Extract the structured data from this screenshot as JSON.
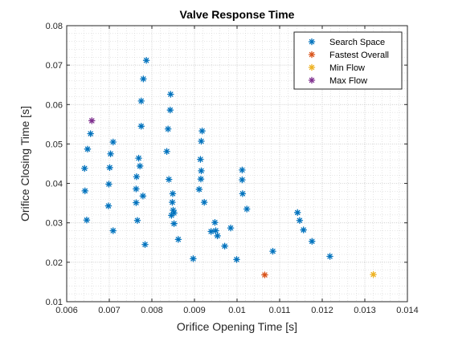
{
  "chart_data": {
    "type": "scatter",
    "title": "Valve Response Time",
    "xlabel": "Orifice Opening Time [s]",
    "ylabel": "Orifice Closing Time [s]",
    "xlim": [
      0.006,
      0.014
    ],
    "ylim": [
      0.01,
      0.08
    ],
    "xticks": [
      "0.006",
      "0.007",
      "0.008",
      "0.009",
      "0.01",
      "0.011",
      "0.012",
      "0.013",
      "0.014"
    ],
    "yticks": [
      "0.01",
      "0.02",
      "0.03",
      "0.04",
      "0.05",
      "0.06",
      "0.07",
      "0.08"
    ],
    "grid": "major and minor, dotted",
    "legend_position": "top-right",
    "marker": "asterisk",
    "series": [
      {
        "name": "Search Space",
        "color": "#0072BD",
        "points": [
          [
            0.00642,
            0.0438
          ],
          [
            0.00643,
            0.0381
          ],
          [
            0.00647,
            0.0307
          ],
          [
            0.00649,
            0.0487
          ],
          [
            0.00656,
            0.0526
          ],
          [
            0.00698,
            0.0343
          ],
          [
            0.00699,
            0.0398
          ],
          [
            0.00701,
            0.044
          ],
          [
            0.00703,
            0.0475
          ],
          [
            0.00709,
            0.0505
          ],
          [
            0.00709,
            0.028
          ],
          [
            0.00763,
            0.0386
          ],
          [
            0.00763,
            0.0351
          ],
          [
            0.00764,
            0.0417
          ],
          [
            0.00766,
            0.0306
          ],
          [
            0.00769,
            0.0464
          ],
          [
            0.00772,
            0.0444
          ],
          [
            0.00775,
            0.0545
          ],
          [
            0.00775,
            0.0609
          ],
          [
            0.00779,
            0.0368
          ],
          [
            0.0078,
            0.0665
          ],
          [
            0.00784,
            0.0245
          ],
          [
            0.00787,
            0.0712
          ],
          [
            0.00835,
            0.0481
          ],
          [
            0.00838,
            0.0538
          ],
          [
            0.0084,
            0.041
          ],
          [
            0.00843,
            0.0586
          ],
          [
            0.00844,
            0.0626
          ],
          [
            0.00846,
            0.0319
          ],
          [
            0.00848,
            0.0352
          ],
          [
            0.00849,
            0.0374
          ],
          [
            0.0085,
            0.0332
          ],
          [
            0.00852,
            0.0298
          ],
          [
            0.00852,
            0.0325
          ],
          [
            0.00862,
            0.0258
          ],
          [
            0.00897,
            0.0209
          ],
          [
            0.00911,
            0.0385
          ],
          [
            0.00914,
            0.0461
          ],
          [
            0.00915,
            0.0411
          ],
          [
            0.00916,
            0.0432
          ],
          [
            0.00916,
            0.0507
          ],
          [
            0.00918,
            0.0533
          ],
          [
            0.00923,
            0.0352
          ],
          [
            0.00939,
            0.0278
          ],
          [
            0.00948,
            0.0301
          ],
          [
            0.0095,
            0.028
          ],
          [
            0.00954,
            0.0267
          ],
          [
            0.00971,
            0.0241
          ],
          [
            0.00985,
            0.0287
          ],
          [
            0.00999,
            0.0207
          ],
          [
            0.01012,
            0.0434
          ],
          [
            0.01012,
            0.0409
          ],
          [
            0.01013,
            0.0374
          ],
          [
            0.01023,
            0.0335
          ],
          [
            0.01084,
            0.0228
          ],
          [
            0.01142,
            0.0326
          ],
          [
            0.01147,
            0.0306
          ],
          [
            0.01156,
            0.0282
          ],
          [
            0.01176,
            0.0253
          ],
          [
            0.01218,
            0.0215
          ]
        ]
      },
      {
        "name": "Fastest Overall",
        "color": "#D95319",
        "points": [
          [
            0.01065,
            0.0168
          ]
        ]
      },
      {
        "name": "Min Flow",
        "color": "#EDB120",
        "points": [
          [
            0.0132,
            0.0169
          ]
        ]
      },
      {
        "name": "Max Flow",
        "color": "#7E2F8E",
        "points": [
          [
            0.00659,
            0.0559
          ]
        ]
      }
    ]
  }
}
